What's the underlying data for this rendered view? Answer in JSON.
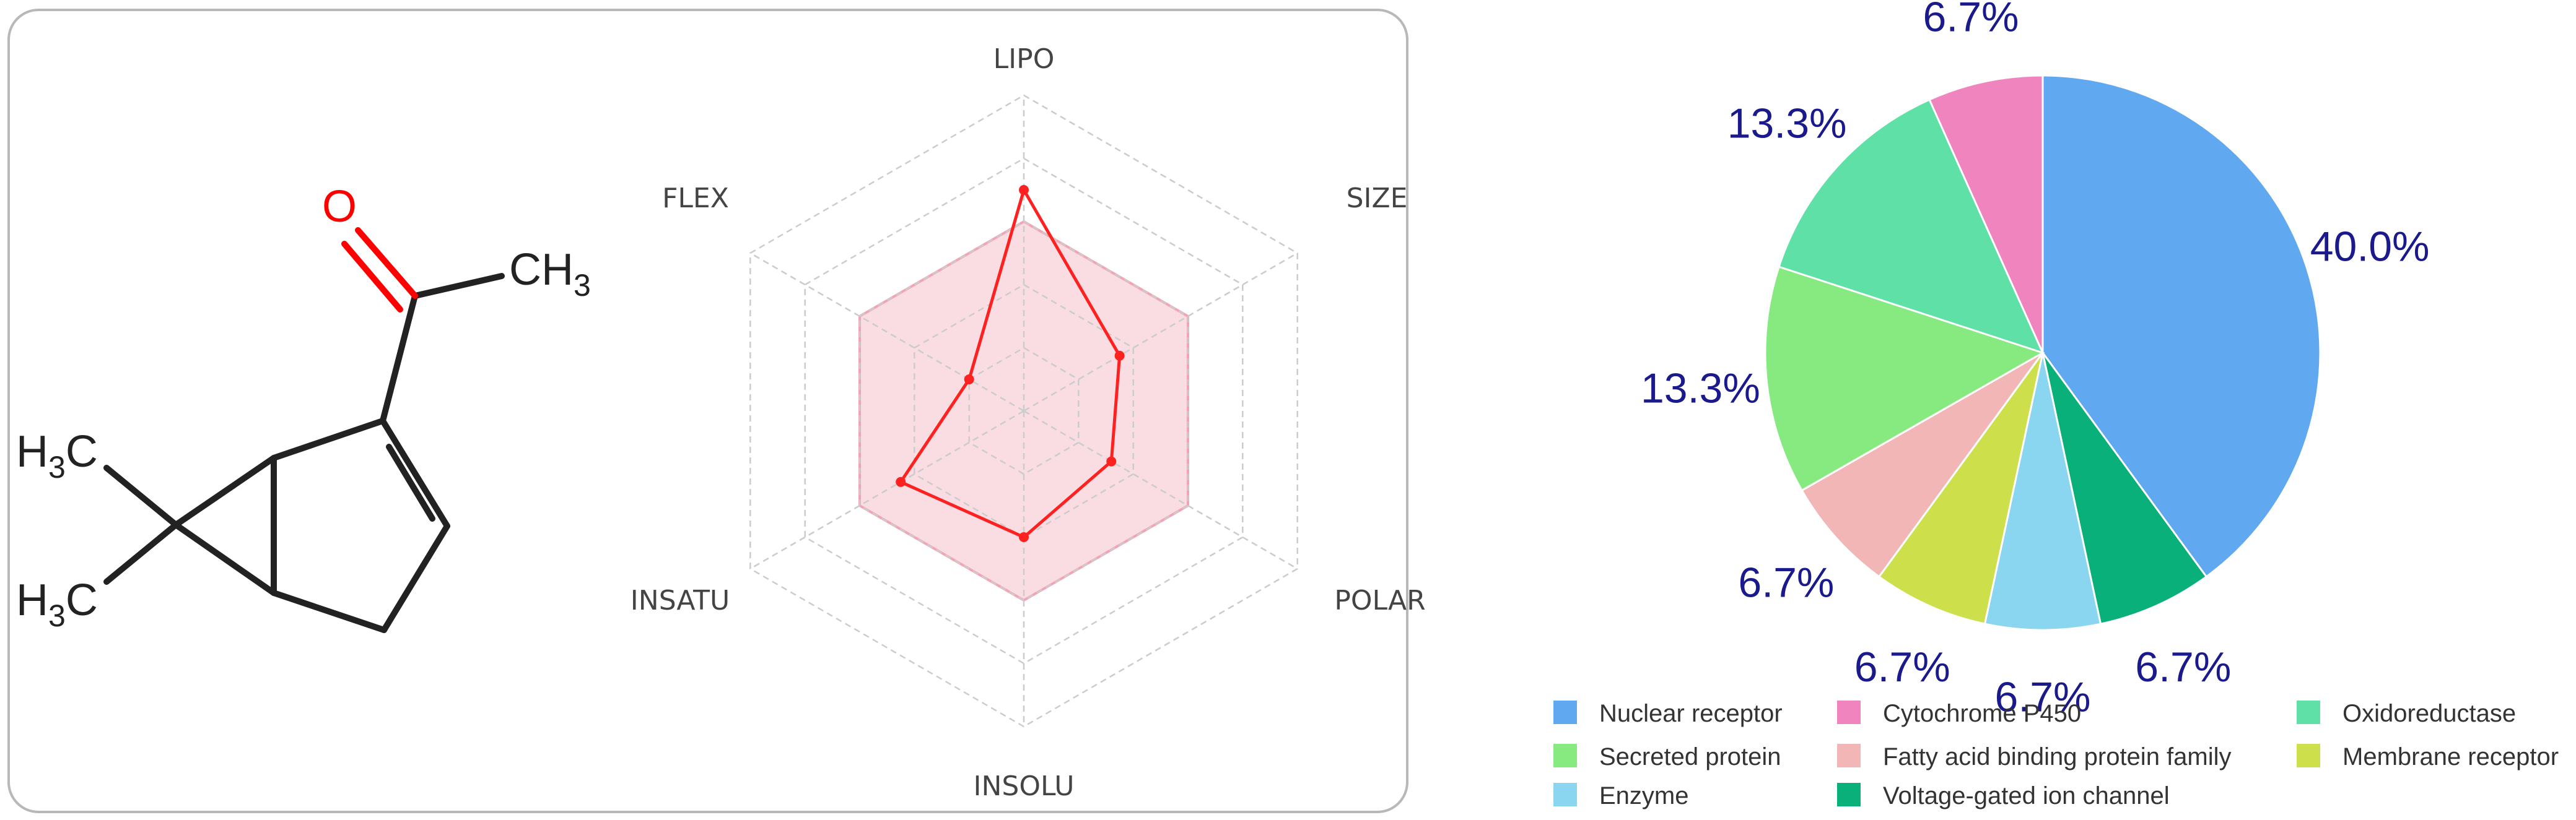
{
  "molecule": {
    "labels": {
      "oxygen": "O",
      "methyl_top": "CH",
      "methyl_top_sub": "3",
      "methyl_a": "H",
      "methyl_a_sub": "3",
      "methyl_a_c": "C",
      "methyl_b": "H",
      "methyl_b_sub": "3",
      "methyl_b_c": "C"
    },
    "colors": {
      "bond": "#222222",
      "oxygen": "#ff0000"
    }
  },
  "radar": {
    "axes": [
      "LIPO",
      "SIZE",
      "POLAR",
      "INSOLU",
      "INSATU",
      "FLEX"
    ],
    "values": [
      0.7,
      0.35,
      0.32,
      0.4,
      0.45,
      0.2
    ],
    "optimal_min": 0.0,
    "optimal_max": 0.6,
    "max": 1.0,
    "rings": 5,
    "colors": {
      "polygon": "#ff2020",
      "optimal_fill": "#f9dde3",
      "optimal_stroke": "#f3a3b3",
      "grid": "#cccccc"
    }
  },
  "chart_data": {
    "type": "pie",
    "slices": [
      {
        "label": "Nuclear receptor",
        "value": 40.0,
        "display": "40.0%",
        "color": "#60a8f0"
      },
      {
        "label": "Voltage-gated ion channel",
        "value": 6.7,
        "display": "6.7%",
        "color": "#0ab07a"
      },
      {
        "label": "Enzyme",
        "value": 6.7,
        "display": "6.7%",
        "color": "#8ad5f0"
      },
      {
        "label": "Membrane receptor",
        "value": 6.7,
        "display": "6.7%",
        "color": "#cde04c"
      },
      {
        "label": "Fatty acid binding protein family",
        "value": 6.7,
        "display": "6.7%",
        "color": "#f3b6b6"
      },
      {
        "label": "Secreted protein",
        "value": 13.3,
        "display": "13.3%",
        "color": "#86ea80"
      },
      {
        "label": "Oxidoreductase",
        "value": 13.3,
        "display": "13.3%",
        "color": "#5ee0a6"
      },
      {
        "label": "Cytochrome P450",
        "value": 6.7,
        "display": "6.7%",
        "color": "#ef84be"
      }
    ],
    "legend": [
      [
        "Nuclear receptor",
        "Cytochrome P450",
        "Oxidoreductase"
      ],
      [
        "Secreted protein",
        "Fatty acid binding protein family",
        "Membrane receptor"
      ],
      [
        "Enzyme",
        "Voltage-gated ion channel"
      ]
    ],
    "legend_placement": "bottom"
  }
}
